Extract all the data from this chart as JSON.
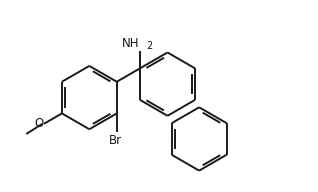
{
  "background_color": "#ffffff",
  "line_color": "#1a1a1a",
  "text_color": "#1a1a1a",
  "bond_width": 1.4,
  "font_size_label": 9,
  "font_size_subscript": 7,
  "nh2_label": "NH",
  "br_label": "Br",
  "o_label": "O",
  "figsize": [
    3.18,
    1.92
  ],
  "dpi": 100
}
